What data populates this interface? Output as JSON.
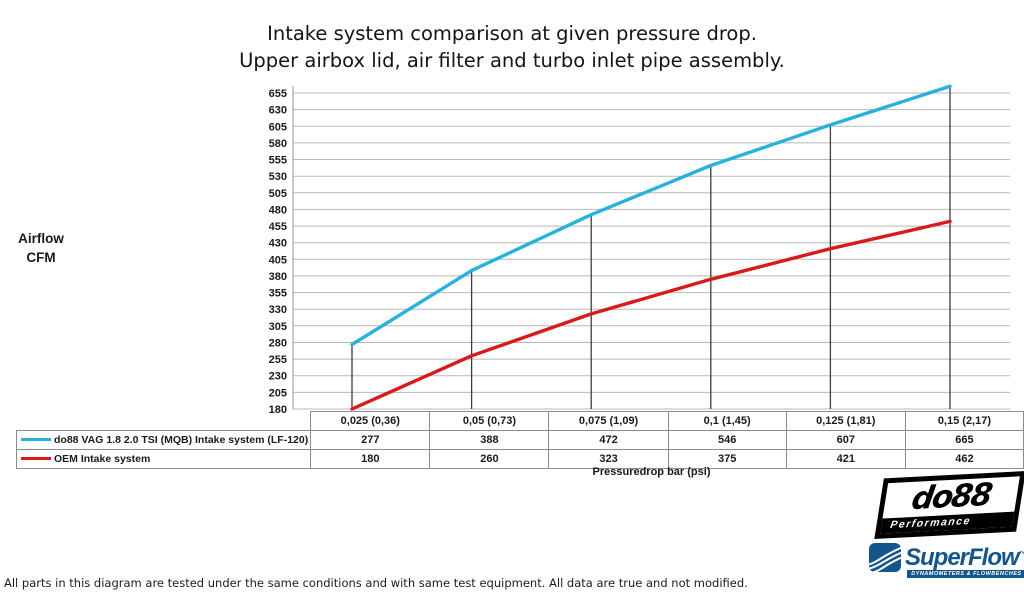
{
  "title": {
    "line1": "Intake system comparison at given pressure drop.",
    "line2": "Upper airbox lid, air filter and turbo inlet pipe assembly."
  },
  "y_axis_label": {
    "line1": "Airflow",
    "line2": "CFM"
  },
  "x_axis_label": "Pressuredrop bar (psi)",
  "chart_data": {
    "type": "line",
    "categories": [
      "0,025 (0,36)",
      "0,05 (0,73)",
      "0,075 (1,09)",
      "0,1 (1,45)",
      "0,125 (1,81)",
      "0,15 (2,17)"
    ],
    "series": [
      {
        "name": "do88 VAG 1.8 2.0 TSI (MQB) Intake system (LF-120)",
        "color": "#29b1dd",
        "values": [
          277,
          388,
          472,
          546,
          607,
          665
        ]
      },
      {
        "name": "OEM Intake system",
        "color": "#da1a1a",
        "values": [
          180,
          260,
          323,
          375,
          421,
          462
        ]
      }
    ],
    "title": "Intake system comparison at given pressure drop. Upper airbox lid, air filter and turbo inlet pipe assembly.",
    "xlabel": "Pressuredrop bar (psi)",
    "ylabel": "Airflow CFM",
    "ylim": [
      180,
      655
    ],
    "y_tick_step": 25,
    "grid": "horizontal gridlines on",
    "drop_lines": "vertical dark lines at each category from x-axis up to do88 series",
    "legend_position": "table rows at left of value table",
    "grid_color": "#b8b8b8",
    "drop_line_color": "#3c3c3c",
    "axis_color": "#9a9a9a"
  },
  "logos": {
    "do88": {
      "name": "do88",
      "subtitle": "Performance"
    },
    "superflow": {
      "name": "SuperFlow",
      "trademark": "™",
      "subtitle": "DYNAMOMETERS & FLOWBENCHES",
      "color": "#14568c"
    }
  },
  "footer": "All parts in this diagram are tested under the same conditions and with same test equipment. All data are true and not modified."
}
